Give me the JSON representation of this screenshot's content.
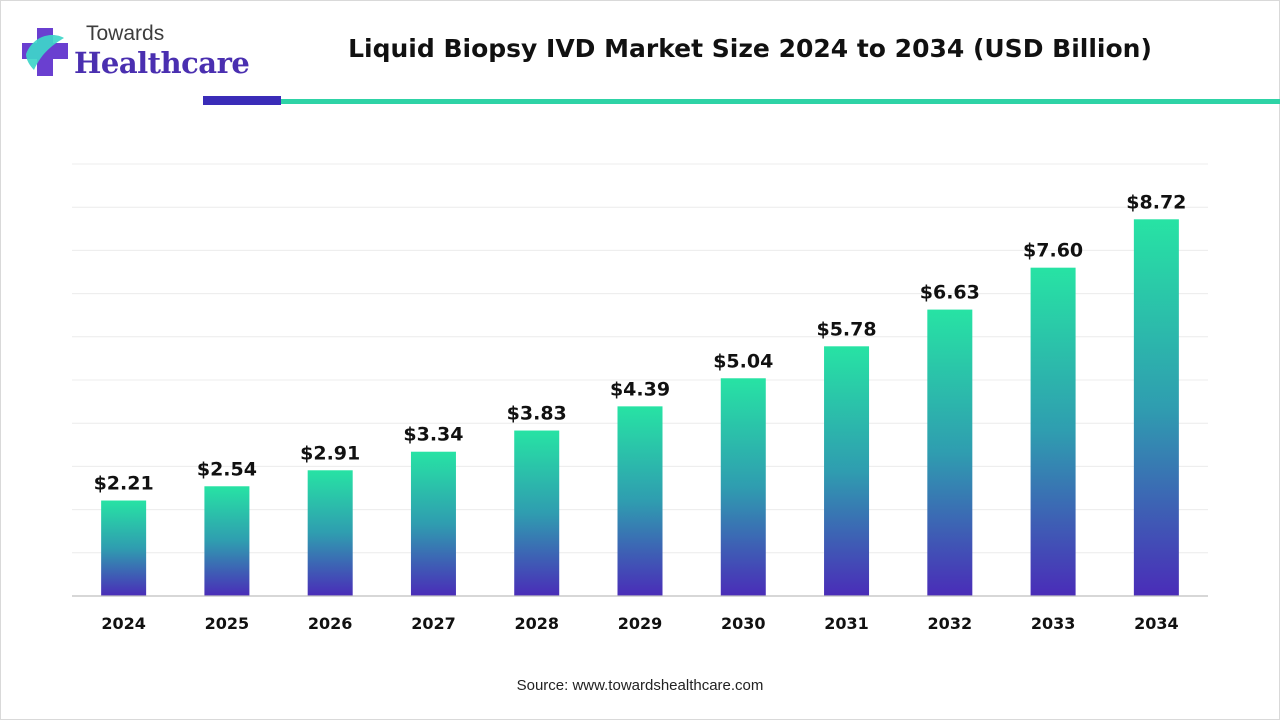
{
  "brand": {
    "top": "Towards",
    "main": "Healthcare"
  },
  "colors": {
    "bar_top": "#27e3a4",
    "bar_mid": "#2f9db0",
    "bar_bottom": "#4a2cb8",
    "rule_dark": "#3a2cb8",
    "rule_teal": "#2ed3a6",
    "brand_text": "#4a2fb0"
  },
  "chart_data": {
    "type": "bar",
    "title": "Liquid Biopsy IVD Market Size 2024 to 2034 (USD Billion)",
    "categories": [
      "2024",
      "2025",
      "2026",
      "2027",
      "2028",
      "2029",
      "2030",
      "2031",
      "2032",
      "2033",
      "2034"
    ],
    "values": [
      2.21,
      2.54,
      2.91,
      3.34,
      3.83,
      4.39,
      5.04,
      5.78,
      6.63,
      7.6,
      8.72
    ],
    "value_labels": [
      "$2.21",
      "$2.54",
      "$2.91",
      "$3.34",
      "$3.83",
      "$4.39",
      "$5.04",
      "$5.78",
      "$6.63",
      "$7.60",
      "$8.72"
    ],
    "ylim": [
      0,
      10
    ],
    "grid": true,
    "legend": "none"
  },
  "source": "Source: www.towardshealthcare.com"
}
